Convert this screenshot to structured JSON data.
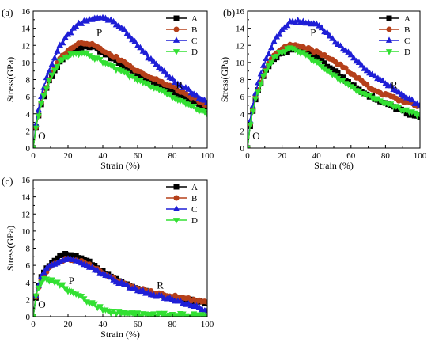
{
  "chart_data": [
    {
      "type": "line",
      "panel_label": "(a)",
      "xlabel": "Strain (%)",
      "ylabel": "Stress(GPa)",
      "xlim": [
        0,
        100
      ],
      "ylim": [
        0,
        16
      ],
      "xticks": [
        0,
        20,
        40,
        60,
        80,
        100
      ],
      "yticks": [
        0,
        2,
        4,
        6,
        8,
        10,
        12,
        14,
        16
      ],
      "legend": "top-right",
      "annotations": [
        {
          "text": "O",
          "x": 5,
          "y": 1.0
        },
        {
          "text": "P",
          "x": 38,
          "y": 13.1
        },
        {
          "text": "R",
          "x": 84,
          "y": 7.0
        }
      ],
      "series": [
        {
          "name": "A",
          "color": "#000000",
          "marker": "square",
          "x": [
            0,
            2,
            5,
            10,
            15,
            20,
            25,
            30,
            35,
            40,
            50,
            60,
            70,
            80,
            90,
            100
          ],
          "y": [
            0,
            3,
            5.5,
            8.2,
            10.0,
            11.0,
            11.6,
            11.9,
            11.8,
            11.2,
            9.9,
            8.6,
            7.6,
            6.6,
            5.6,
            4.5
          ]
        },
        {
          "name": "B",
          "color": "#b5401a",
          "marker": "circle",
          "x": [
            0,
            2,
            5,
            10,
            15,
            20,
            25,
            30,
            35,
            40,
            50,
            60,
            70,
            80,
            90,
            100
          ],
          "y": [
            0,
            3,
            5.6,
            8.4,
            10.3,
            11.4,
            12.1,
            12.3,
            12.0,
            11.4,
            10.3,
            9.0,
            8.0,
            7.1,
            6.1,
            5.0
          ]
        },
        {
          "name": "C",
          "color": "#1f1fd6",
          "marker": "triangle",
          "x": [
            0,
            2,
            5,
            10,
            15,
            20,
            25,
            30,
            35,
            40,
            45,
            50,
            55,
            60,
            70,
            80,
            90,
            100
          ],
          "y": [
            0,
            3.5,
            6.5,
            9.5,
            11.8,
            13.2,
            14.3,
            14.9,
            15.2,
            15.3,
            14.9,
            14.2,
            13.2,
            12.0,
            9.8,
            8.0,
            6.6,
            5.4
          ]
        },
        {
          "name": "D",
          "color": "#33e033",
          "marker": "triangle-down",
          "x": [
            0,
            2,
            5,
            10,
            15,
            20,
            25,
            30,
            35,
            40,
            50,
            60,
            70,
            80,
            90,
            100
          ],
          "y": [
            0,
            3,
            5.5,
            8.2,
            10.0,
            10.8,
            11.1,
            11.0,
            10.6,
            10.1,
            9.0,
            8.0,
            7.0,
            6.0,
            5.0,
            4.0
          ]
        }
      ]
    },
    {
      "type": "line",
      "panel_label": "(b)",
      "xlabel": "Strain (%)",
      "ylabel": "Stress(GPa)",
      "xlim": [
        0,
        100
      ],
      "ylim": [
        0,
        16
      ],
      "xticks": [
        0,
        20,
        40,
        60,
        80,
        100
      ],
      "yticks": [
        0,
        2,
        4,
        6,
        8,
        10,
        12,
        14,
        16
      ],
      "legend": "top-right",
      "annotations": [
        {
          "text": "O",
          "x": 5,
          "y": 1.0
        },
        {
          "text": "P",
          "x": 38,
          "y": 13.1
        },
        {
          "text": "R",
          "x": 85,
          "y": 7.0
        }
      ],
      "series": [
        {
          "name": "A",
          "color": "#000000",
          "marker": "square",
          "x": [
            0,
            2,
            5,
            10,
            15,
            20,
            25,
            30,
            35,
            40,
            50,
            60,
            70,
            80,
            90,
            100
          ],
          "y": [
            0,
            3.5,
            6,
            8.8,
            10.4,
            11.2,
            11.5,
            11.6,
            11.3,
            10.6,
            9.0,
            7.5,
            6.2,
            5.2,
            4.3,
            3.5
          ]
        },
        {
          "name": "B",
          "color": "#b5401a",
          "marker": "circle",
          "x": [
            0,
            2,
            5,
            10,
            15,
            20,
            25,
            30,
            35,
            40,
            50,
            60,
            70,
            80,
            90,
            100
          ],
          "y": [
            0,
            3.5,
            6.2,
            9.0,
            10.8,
            11.6,
            12.0,
            11.9,
            11.6,
            11.2,
            10.2,
            8.8,
            7.2,
            6.2,
            5.5,
            4.8
          ]
        },
        {
          "name": "C",
          "color": "#1f1fd6",
          "marker": "triangle",
          "x": [
            0,
            2,
            5,
            10,
            15,
            20,
            25,
            30,
            35,
            40,
            45,
            50,
            60,
            70,
            80,
            90,
            100
          ],
          "y": [
            0,
            4.0,
            6.8,
            10.0,
            12.3,
            13.8,
            14.7,
            14.8,
            14.6,
            14.4,
            13.6,
            12.6,
            10.8,
            9.0,
            7.6,
            6.2,
            4.9
          ]
        },
        {
          "name": "D",
          "color": "#33e033",
          "marker": "triangle-down",
          "x": [
            0,
            2,
            5,
            10,
            15,
            20,
            25,
            30,
            35,
            40,
            50,
            60,
            70,
            80,
            90,
            100
          ],
          "y": [
            0,
            3.5,
            6.0,
            8.8,
            10.5,
            11.3,
            11.6,
            11.3,
            10.8,
            10.0,
            8.5,
            7.2,
            6.1,
            5.3,
            4.5,
            3.8
          ]
        }
      ]
    },
    {
      "type": "line",
      "panel_label": "(c)",
      "xlabel": "Strain (%)",
      "ylabel": "Stress(GPa)",
      "xlim": [
        0,
        100
      ],
      "ylim": [
        0,
        16
      ],
      "xticks": [
        0,
        20,
        40,
        60,
        80,
        100
      ],
      "yticks": [
        0,
        2,
        4,
        6,
        8,
        10,
        12,
        14,
        16
      ],
      "legend": "top-right",
      "annotations": [
        {
          "text": "O",
          "x": 5,
          "y": 1.0
        },
        {
          "text": "P",
          "x": 22,
          "y": 3.8
        },
        {
          "text": "R",
          "x": 73,
          "y": 3.3
        }
      ],
      "series": [
        {
          "name": "A",
          "color": "#000000",
          "marker": "square",
          "x": [
            0,
            2,
            5,
            10,
            15,
            20,
            25,
            30,
            35,
            40,
            50,
            60,
            70,
            80,
            90,
            100
          ],
          "y": [
            0,
            3.0,
            4.8,
            6.2,
            7.0,
            7.3,
            7.1,
            6.6,
            6.0,
            5.3,
            4.1,
            3.2,
            2.6,
            2.2,
            1.9,
            1.6
          ]
        },
        {
          "name": "B",
          "color": "#b5401a",
          "marker": "circle",
          "x": [
            0,
            2,
            5,
            10,
            15,
            20,
            25,
            30,
            35,
            40,
            50,
            60,
            70,
            80,
            90,
            100
          ],
          "y": [
            0,
            2.8,
            4.6,
            5.8,
            6.5,
            6.8,
            6.6,
            6.2,
            5.7,
            5.1,
            4.1,
            3.3,
            2.8,
            2.4,
            2.0,
            1.7
          ]
        },
        {
          "name": "C",
          "color": "#1f1fd6",
          "marker": "triangle",
          "x": [
            0,
            2,
            5,
            10,
            15,
            20,
            25,
            30,
            35,
            40,
            50,
            60,
            70,
            80,
            90,
            100
          ],
          "y": [
            0,
            3.0,
            4.9,
            6.0,
            6.5,
            6.7,
            6.5,
            6.1,
            5.6,
            5.0,
            3.9,
            3.1,
            2.5,
            2.0,
            1.4,
            0.7
          ]
        },
        {
          "name": "D",
          "color": "#33e033",
          "marker": "triangle-down",
          "x": [
            0,
            2,
            5,
            8,
            10,
            15,
            20,
            25,
            30,
            35,
            40,
            45,
            50,
            55,
            60,
            70,
            80,
            90,
            100
          ],
          "y": [
            0,
            3.0,
            4.3,
            4.4,
            4.2,
            3.8,
            3.2,
            2.6,
            2.0,
            1.4,
            0.9,
            0.6,
            0.4,
            0.3,
            0.25,
            0.2,
            0.2,
            0.15,
            0.1
          ]
        }
      ]
    }
  ]
}
